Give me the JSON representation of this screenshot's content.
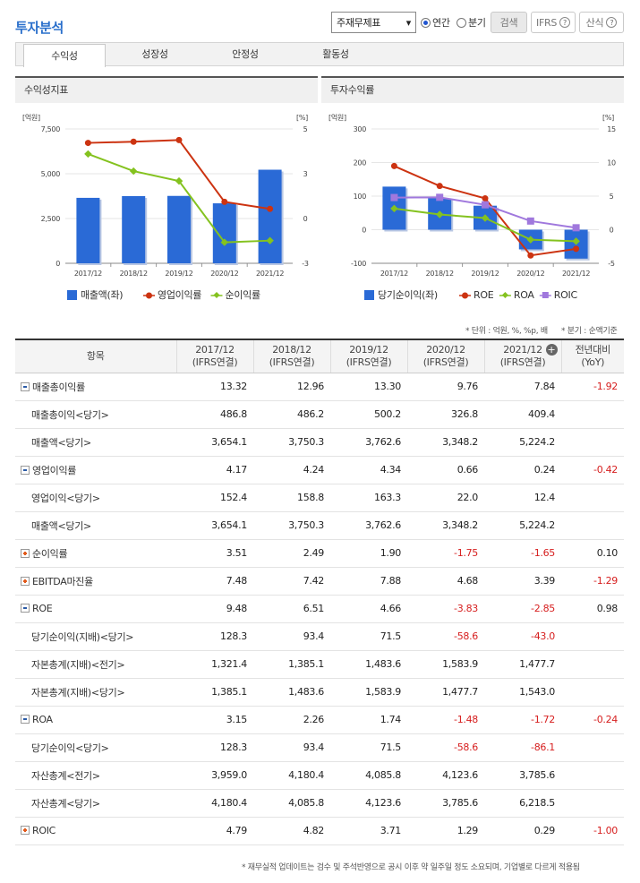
{
  "page_title": "투자분석",
  "controls": {
    "statement_select": "주재무제표",
    "annual_label": "연간",
    "quarter_label": "분기",
    "search_label": "검색",
    "ifrs_label": "IFRS",
    "formula_label": "산식",
    "help_glyph": "?"
  },
  "tabs": [
    "수익성",
    "성장성",
    "안정성",
    "활동성"
  ],
  "active_tab": 0,
  "colors": {
    "blue": "#2a6ad6",
    "red": "#cc3311",
    "green": "#84c21f",
    "purple": "#a078dd"
  },
  "chart_data": [
    {
      "type": "bar+line",
      "title": "수익성지표",
      "left_unit": "[억원]",
      "right_unit": "[%]",
      "categories": [
        "2017/12",
        "2018/12",
        "2019/12",
        "2020/12",
        "2021/12"
      ],
      "left_ticks": [
        "7,500",
        "5,000",
        "2,500",
        "0"
      ],
      "right_ticks": [
        "5",
        "3",
        "0",
        "-3"
      ],
      "ylim_left": [
        0,
        7500
      ],
      "ylim_right": [
        -3,
        5
      ],
      "bars": {
        "name": "매출액(좌)",
        "values": [
          3654.1,
          3750.3,
          3762.6,
          3348.2,
          5224.2
        ]
      },
      "lines": [
        {
          "name": "영업이익률",
          "color": "red",
          "values": [
            4.17,
            4.24,
            4.34,
            0.66,
            0.24
          ]
        },
        {
          "name": "순이익률",
          "color": "green",
          "values": [
            3.51,
            2.49,
            1.9,
            -1.75,
            -1.65
          ]
        }
      ]
    },
    {
      "type": "bar+line",
      "title": "투자수익률",
      "left_unit": "[억원]",
      "right_unit": "[%]",
      "categories": [
        "2017/12",
        "2018/12",
        "2019/12",
        "2020/12",
        "2021/12"
      ],
      "left_ticks": [
        "300",
        "200",
        "100",
        "0",
        "-100"
      ],
      "right_ticks": [
        "15",
        "10",
        "5",
        "0",
        "-5"
      ],
      "ylim_left": [
        -100,
        300
      ],
      "ylim_right": [
        -5,
        15
      ],
      "bars": {
        "name": "당기순이익(좌)",
        "values": [
          128.3,
          93.4,
          71.5,
          -58.6,
          -86.1
        ]
      },
      "lines": [
        {
          "name": "ROE",
          "color": "red",
          "values": [
            9.48,
            6.51,
            4.66,
            -3.83,
            -2.85
          ]
        },
        {
          "name": "ROA",
          "color": "green",
          "values": [
            3.15,
            2.26,
            1.74,
            -1.48,
            -1.72
          ]
        },
        {
          "name": "ROIC",
          "color": "purple",
          "values": [
            4.79,
            4.82,
            3.71,
            1.29,
            0.29
          ]
        }
      ]
    }
  ],
  "unit_note": "* 단위 : 억원, %, %p, 배",
  "quarter_note": "* 분기 : 순액기준",
  "table": {
    "header_item": "항목",
    "columns": [
      {
        "year": "2017/12",
        "basis": "(IFRS연결)"
      },
      {
        "year": "2018/12",
        "basis": "(IFRS연결)"
      },
      {
        "year": "2019/12",
        "basis": "(IFRS연결)"
      },
      {
        "year": "2020/12",
        "basis": "(IFRS연결)"
      },
      {
        "year": "2021/12",
        "basis": "(IFRS연결)"
      }
    ],
    "yoy_header": "전년대비",
    "yoy_sub": "(YoY)",
    "rows": [
      {
        "label": "매출총이익률",
        "kind": "minus",
        "values": [
          "13.32",
          "12.96",
          "13.30",
          "9.76",
          "7.84"
        ],
        "yoy": "-1.92"
      },
      {
        "label": "매출총이익<당기>",
        "kind": "sub",
        "values": [
          "486.8",
          "486.2",
          "500.2",
          "326.8",
          "409.4"
        ],
        "yoy": ""
      },
      {
        "label": "매출액<당기>",
        "kind": "sub",
        "values": [
          "3,654.1",
          "3,750.3",
          "3,762.6",
          "3,348.2",
          "5,224.2"
        ],
        "yoy": ""
      },
      {
        "label": "영업이익률",
        "kind": "minus",
        "values": [
          "4.17",
          "4.24",
          "4.34",
          "0.66",
          "0.24"
        ],
        "yoy": "-0.42"
      },
      {
        "label": "영업이익<당기>",
        "kind": "sub",
        "values": [
          "152.4",
          "158.8",
          "163.3",
          "22.0",
          "12.4"
        ],
        "yoy": ""
      },
      {
        "label": "매출액<당기>",
        "kind": "sub",
        "values": [
          "3,654.1",
          "3,750.3",
          "3,762.6",
          "3,348.2",
          "5,224.2"
        ],
        "yoy": ""
      },
      {
        "label": "순이익률",
        "kind": "plus",
        "values": [
          "3.51",
          "2.49",
          "1.90",
          "-1.75",
          "-1.65"
        ],
        "yoy": "0.10"
      },
      {
        "label": "EBITDA마진율",
        "kind": "plus",
        "values": [
          "7.48",
          "7.42",
          "7.88",
          "4.68",
          "3.39"
        ],
        "yoy": "-1.29"
      },
      {
        "label": "ROE",
        "kind": "minus",
        "values": [
          "9.48",
          "6.51",
          "4.66",
          "-3.83",
          "-2.85"
        ],
        "yoy": "0.98"
      },
      {
        "label": "당기순이익(지배)<당기>",
        "kind": "sub",
        "values": [
          "128.3",
          "93.4",
          "71.5",
          "-58.6",
          "-43.0"
        ],
        "yoy": ""
      },
      {
        "label": "자본총계(지배)<전기>",
        "kind": "sub",
        "values": [
          "1,321.4",
          "1,385.1",
          "1,483.6",
          "1,583.9",
          "1,477.7"
        ],
        "yoy": ""
      },
      {
        "label": "자본총계(지배)<당기>",
        "kind": "sub",
        "values": [
          "1,385.1",
          "1,483.6",
          "1,583.9",
          "1,477.7",
          "1,543.0"
        ],
        "yoy": ""
      },
      {
        "label": "ROA",
        "kind": "minus",
        "values": [
          "3.15",
          "2.26",
          "1.74",
          "-1.48",
          "-1.72"
        ],
        "yoy": "-0.24"
      },
      {
        "label": "당기순이익<당기>",
        "kind": "sub",
        "values": [
          "128.3",
          "93.4",
          "71.5",
          "-58.6",
          "-86.1"
        ],
        "yoy": ""
      },
      {
        "label": "자산총계<전기>",
        "kind": "sub",
        "values": [
          "3,959.0",
          "4,180.4",
          "4,085.8",
          "4,123.6",
          "3,785.6"
        ],
        "yoy": ""
      },
      {
        "label": "자산총계<당기>",
        "kind": "sub",
        "values": [
          "4,180.4",
          "4,085.8",
          "4,123.6",
          "3,785.6",
          "6,218.5"
        ],
        "yoy": ""
      },
      {
        "label": "ROIC",
        "kind": "plus",
        "values": [
          "4.79",
          "4.82",
          "3.71",
          "1.29",
          "0.29"
        ],
        "yoy": "-1.00"
      }
    ]
  },
  "footer_note": "* 재무실적 업데이트는 검수 및 주석반영으로 공시 이후 약 일주일 정도 소요되며, 기업별로 다르게 적용됨"
}
